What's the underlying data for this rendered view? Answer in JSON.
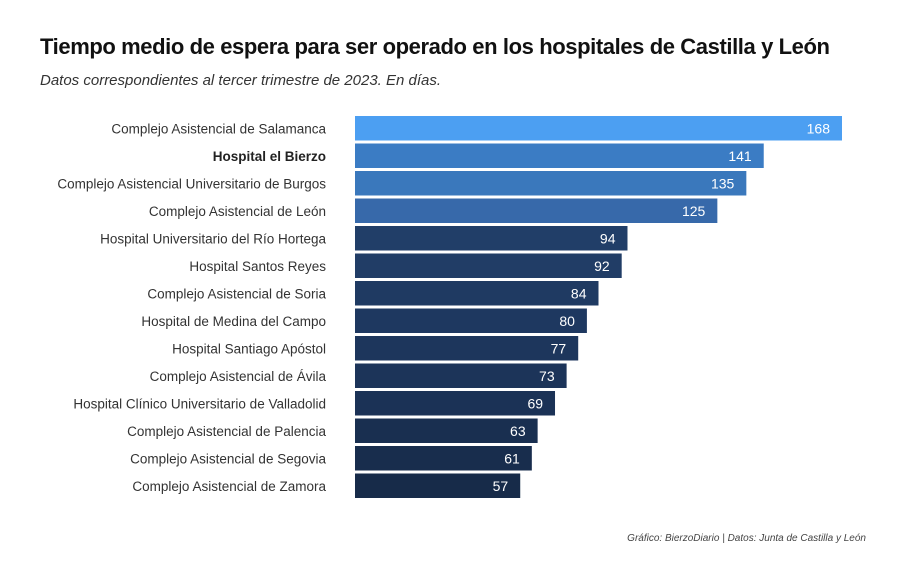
{
  "title": "Tiempo medio de espera para ser operado en los hospitales de Castilla y León",
  "subtitle": "Datos correspondientes al tercer trimestre de 2023. En días.",
  "caption": "Gráfico: BierzoDiario | Datos: Junta de Castilla y León",
  "chart_data": {
    "type": "bar",
    "orientation": "horizontal",
    "title": "Tiempo medio de espera para ser operado en los hospitales de Castilla y León",
    "subtitle": "Datos correspondientes al tercer trimestre de 2023. En días.",
    "xlabel": "",
    "ylabel": "",
    "grid": false,
    "legend": "none",
    "xlim": [
      0,
      168
    ],
    "highlighted_category": "Hospital el Bierzo",
    "categories": [
      "Complejo Asistencial de Salamanca",
      "Hospital el Bierzo",
      "Complejo Asistencial Universitario de Burgos",
      "Complejo Asistencial de León",
      "Hospital Universitario del Río Hortega",
      "Hospital Santos Reyes",
      "Complejo Asistencial de Soria",
      "Hospital de Medina del Campo",
      "Hospital Santiago Apóstol",
      "Complejo Asistencial de Ávila",
      "Hospital Clínico Universitario de Valladolid",
      "Complejo Asistencial de Palencia",
      "Complejo Asistencial de Segovia",
      "Complejo Asistencial de Zamora"
    ],
    "values": [
      168,
      141,
      135,
      125,
      94,
      92,
      84,
      80,
      77,
      73,
      69,
      63,
      61,
      57
    ],
    "colors": [
      "#4c9ff2",
      "#3b7cc4",
      "#3a78bc",
      "#3769aa",
      "#213e68",
      "#213d66",
      "#1f3a62",
      "#1e3860",
      "#1d365c",
      "#1c3459",
      "#1b3256",
      "#192f50",
      "#182d4d",
      "#172b49"
    ]
  }
}
